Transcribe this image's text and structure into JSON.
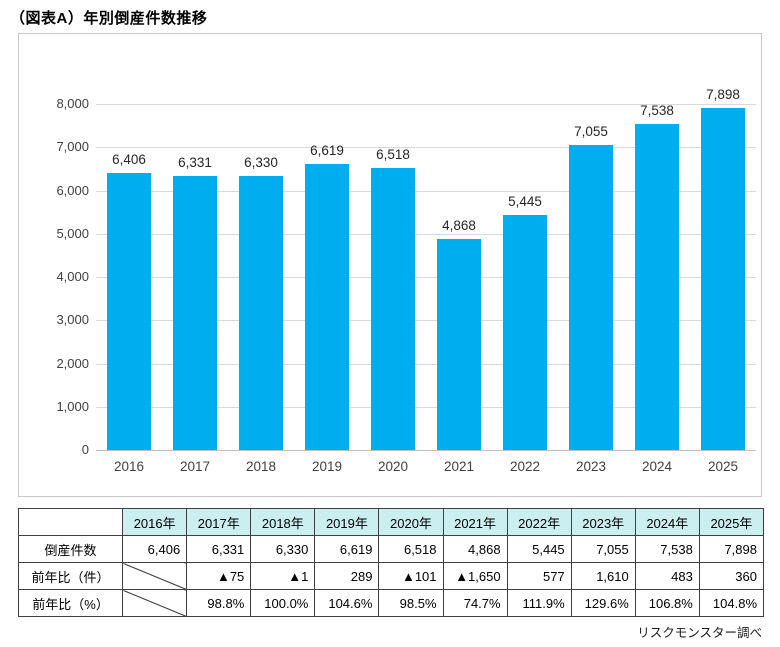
{
  "title": "（図表A）年別倒産件数推移",
  "source_note": "リスクモンスター調べ",
  "chart_data": {
    "type": "bar",
    "title": "年別倒産件数推移",
    "categories": [
      "2016",
      "2017",
      "2018",
      "2019",
      "2020",
      "2021",
      "2022",
      "2023",
      "2024",
      "2025"
    ],
    "values": [
      6406,
      6331,
      6330,
      6619,
      6518,
      4868,
      5445,
      7055,
      7538,
      7898
    ],
    "value_labels": [
      "6,406",
      "6,331",
      "6,330",
      "6,619",
      "6,518",
      "4,868",
      "5,445",
      "7,055",
      "7,538",
      "7,898"
    ],
    "xlabel": "",
    "ylabel": "",
    "ylim": [
      0,
      8000
    ],
    "ytick_interval": 1000,
    "yticks": [
      "0",
      "1,000",
      "2,000",
      "3,000",
      "4,000",
      "5,000",
      "6,000",
      "7,000",
      "8,000"
    ],
    "grid": true,
    "legend_position": "none",
    "bar_color": "#00AEEF"
  },
  "table": {
    "corner_label": "",
    "columns": [
      "2016年",
      "2017年",
      "2018年",
      "2019年",
      "2020年",
      "2021年",
      "2022年",
      "2023年",
      "2024年",
      "2025年"
    ],
    "rows": [
      {
        "label": "倒産件数",
        "cells": [
          "6,406",
          "6,331",
          "6,330",
          "6,619",
          "6,518",
          "4,868",
          "5,445",
          "7,055",
          "7,538",
          "7,898"
        ],
        "first_diagonal": false
      },
      {
        "label": "前年比（件）",
        "cells": [
          "",
          "▲75",
          "▲1",
          "289",
          "▲101",
          "▲1,650",
          "577",
          "1,610",
          "483",
          "360"
        ],
        "first_diagonal": true
      },
      {
        "label": "前年比（%）",
        "cells": [
          "",
          "98.8%",
          "100.0%",
          "104.6%",
          "98.5%",
          "74.7%",
          "111.9%",
          "129.6%",
          "106.8%",
          "104.8%"
        ],
        "first_diagonal": true
      }
    ]
  },
  "colors": {
    "bar": "#00AEEF",
    "gridline": "#d9d9d9",
    "chart_border": "#c9c9c9",
    "table_border": "#404040",
    "table_header_bg": "#cbeef0",
    "axis_text": "#404040"
  }
}
